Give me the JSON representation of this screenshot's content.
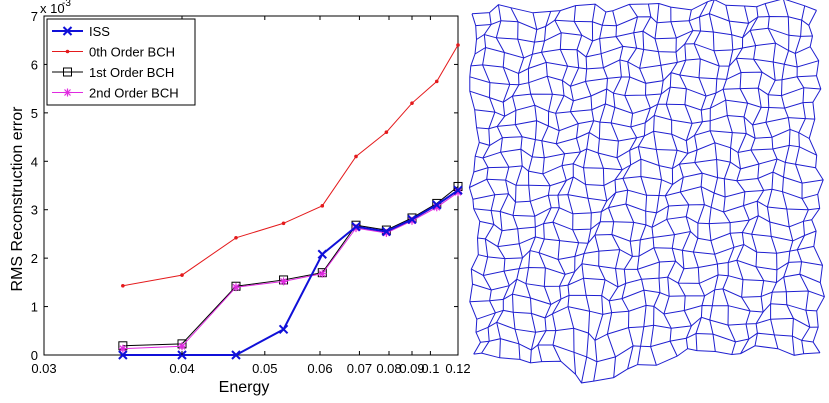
{
  "chart_data": [
    {
      "type": "line",
      "xlabel": "Energy",
      "ylabel": "RMS Reconstruction error",
      "y_multiplier_base": "x 10",
      "y_multiplier_exp": "-3",
      "xlim": [
        0.03,
        0.12
      ],
      "ylim": [
        0,
        7
      ],
      "x_ticks": [
        "0.03",
        "0.04",
        "0.05",
        "0.06",
        "0.07",
        "0.08",
        "0.09",
        "0.1",
        "0.12"
      ],
      "y_ticks": [
        "0",
        "1",
        "2",
        "3",
        "4",
        "5",
        "6",
        "7"
      ],
      "x_scale": "reciprocal (ticks printed in Energy units)",
      "legend_position": "top-left",
      "grid": false,
      "series": [
        {
          "name": "ISS",
          "color": "#1010d8",
          "marker": "x",
          "x": [
            0.035,
            0.04,
            0.046,
            0.053,
            0.0605,
            0.069,
            0.079,
            0.09,
            0.104,
            0.12
          ],
          "y": [
            0.0,
            0.0,
            0.0,
            0.53,
            2.08,
            2.65,
            2.55,
            2.8,
            3.1,
            3.4
          ]
        },
        {
          "name": "0th Order BCH",
          "color": "#e41a1c",
          "marker": "dot",
          "x": [
            0.035,
            0.04,
            0.046,
            0.053,
            0.0605,
            0.069,
            0.079,
            0.09,
            0.104,
            0.12
          ],
          "y": [
            1.43,
            1.65,
            2.42,
            2.72,
            3.08,
            4.1,
            4.6,
            5.2,
            5.65,
            6.4
          ]
        },
        {
          "name": "1st Order BCH",
          "color": "#000000",
          "marker": "square",
          "x": [
            0.035,
            0.04,
            0.046,
            0.053,
            0.0605,
            0.069,
            0.079,
            0.09,
            0.104,
            0.12
          ],
          "y": [
            0.19,
            0.23,
            1.42,
            1.55,
            1.7,
            2.68,
            2.58,
            2.83,
            3.13,
            3.48
          ]
        },
        {
          "name": "2nd Order BCH",
          "color": "#e02ae0",
          "marker": "asterisk",
          "x": [
            0.035,
            0.04,
            0.046,
            0.053,
            0.0605,
            0.069,
            0.079,
            0.09,
            0.104,
            0.12
          ],
          "y": [
            0.13,
            0.18,
            1.4,
            1.52,
            1.68,
            2.62,
            2.52,
            2.77,
            3.05,
            3.36
          ]
        }
      ]
    }
  ],
  "mesh": {
    "color": "#1f1fd0",
    "rows": 25,
    "cols": 25
  }
}
